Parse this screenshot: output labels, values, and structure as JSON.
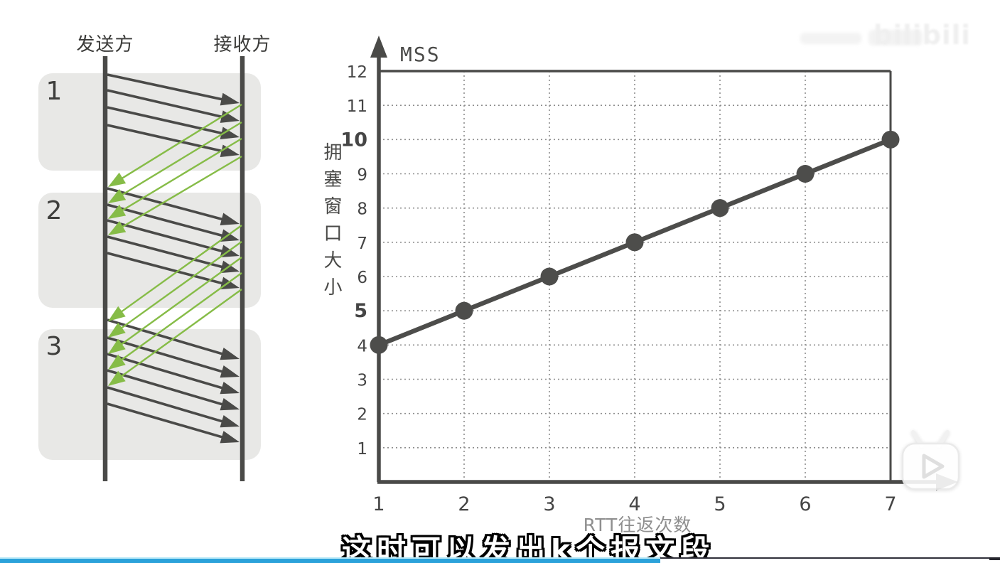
{
  "video_overlay": {
    "subtitle": "这时可以发出k个报文段",
    "watermark_text": "bilibili",
    "progress_percent": 66,
    "progress_color": "#2BA2DA",
    "progress_color_light": "#B9E9F8"
  },
  "sequence_diagram": {
    "sender_label": "发送方",
    "receiver_label": "接收方",
    "rounds": [
      {
        "label": "1",
        "segments_sent": 4
      },
      {
        "label": "2",
        "segments_sent": 5
      },
      {
        "label": "3",
        "segments_sent": 6
      }
    ],
    "ack_rounds": [
      {
        "acks": 4
      },
      {
        "acks": 5
      }
    ],
    "colors": {
      "segment_arrow": "#4A4A48",
      "ack_arrow": "#86BC47",
      "lifeline": "#4A4A48",
      "round_box": "#E8E8E6",
      "text": "#3E3E3C"
    }
  },
  "chart_data": {
    "type": "line",
    "x": [
      1,
      2,
      3,
      4,
      5,
      6,
      7
    ],
    "y": [
      4,
      5,
      6,
      7,
      8,
      9,
      10
    ],
    "unit_label": "MSS",
    "ylabel": "拥塞窗口大小",
    "xlabel": "RTT往返次数",
    "xlim": [
      1,
      7
    ],
    "ylim": [
      0,
      12
    ],
    "xticks": [
      1,
      2,
      3,
      4,
      5,
      6,
      7
    ],
    "yticks": [
      1,
      2,
      3,
      4,
      5,
      6,
      7,
      8,
      9,
      10,
      11,
      12
    ],
    "bold_yticks": [
      5,
      10
    ],
    "grid": "dotted",
    "legend": null,
    "line_color": "#4D4D4B",
    "grid_color": "#8E8E8E",
    "axis_color": "#4A4A48"
  }
}
